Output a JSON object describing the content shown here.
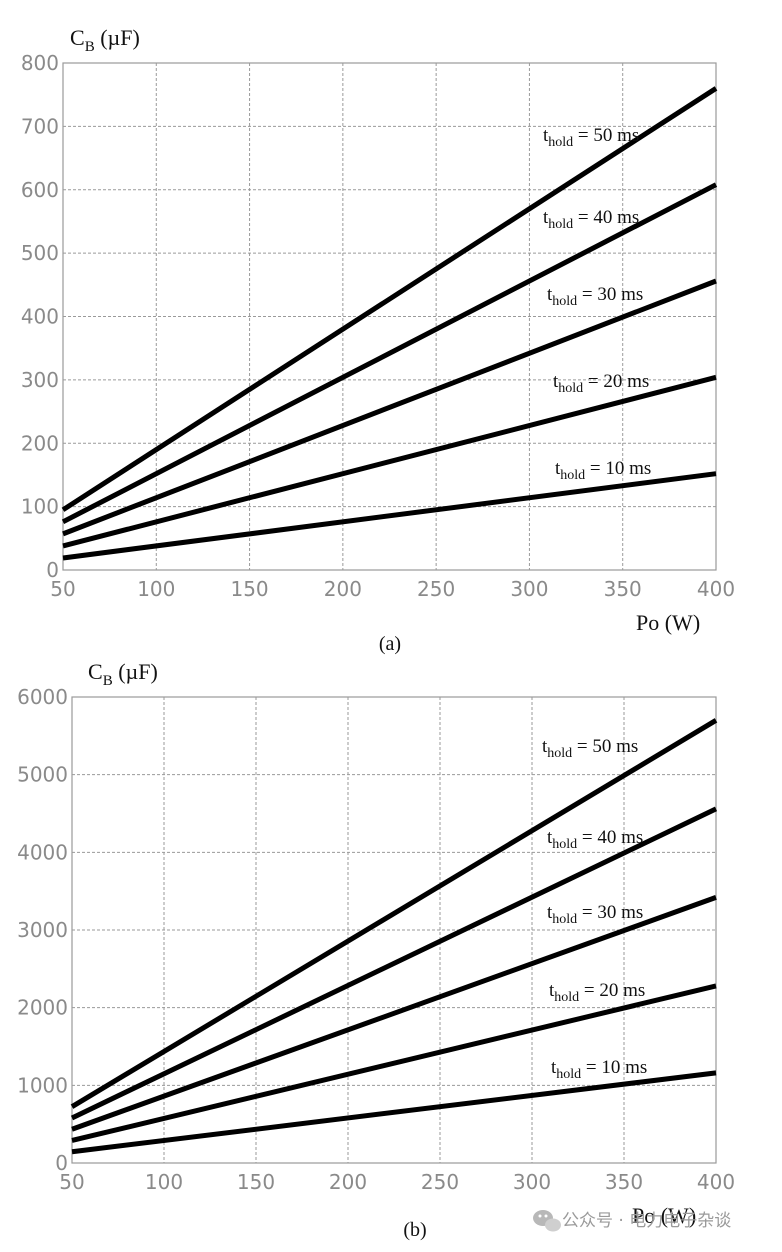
{
  "chart_data": [
    {
      "type": "line",
      "caption": "(a)",
      "ylabel": "C",
      "ylabel_sub": "B",
      "ylabel_unit": "(µF)",
      "xlabel": "Po (W)",
      "xlim": [
        50,
        400
      ],
      "ylim": [
        0,
        800
      ],
      "x_ticks": [
        50,
        100,
        150,
        200,
        250,
        300,
        350,
        400
      ],
      "y_ticks": [
        0,
        100,
        200,
        300,
        400,
        500,
        600,
        700,
        800
      ],
      "grid": true,
      "series": [
        {
          "name_main": "t",
          "name_sub": "hold",
          "name_tail": " = 50 ms",
          "x": [
            50,
            400
          ],
          "values": [
            95,
            760
          ]
        },
        {
          "name_main": "t",
          "name_sub": "hold",
          "name_tail": " = 40 ms",
          "x": [
            50,
            400
          ],
          "values": [
            76,
            608
          ]
        },
        {
          "name_main": "t",
          "name_sub": "hold",
          "name_tail": " = 30 ms",
          "x": [
            50,
            400
          ],
          "values": [
            57,
            456
          ]
        },
        {
          "name_main": "t",
          "name_sub": "hold",
          "name_tail": " = 20 ms",
          "x": [
            50,
            400
          ],
          "values": [
            38,
            304
          ]
        },
        {
          "name_main": "t",
          "name_sub": "hold",
          "name_tail": " = 10 ms",
          "x": [
            50,
            400
          ],
          "values": [
            19,
            152
          ]
        }
      ]
    },
    {
      "type": "line",
      "caption": "(b)",
      "ylabel": "C",
      "ylabel_sub": "B",
      "ylabel_unit": "(µF)",
      "xlabel": "Po (W)",
      "xlim": [
        50,
        400
      ],
      "ylim": [
        0,
        6000
      ],
      "x_ticks": [
        50,
        100,
        150,
        200,
        250,
        300,
        350,
        400
      ],
      "y_ticks": [
        0,
        1000,
        2000,
        3000,
        4000,
        5000,
        6000
      ],
      "grid": true,
      "series": [
        {
          "name_main": "t",
          "name_sub": "hold",
          "name_tail": " = 50 ms",
          "x": [
            50,
            400
          ],
          "values": [
            725,
            5700
          ]
        },
        {
          "name_main": "t",
          "name_sub": "hold",
          "name_tail": " = 40 ms",
          "x": [
            50,
            400
          ],
          "values": [
            580,
            4560
          ]
        },
        {
          "name_main": "t",
          "name_sub": "hold",
          "name_tail": " = 30 ms",
          "x": [
            50,
            400
          ],
          "values": [
            435,
            3420
          ]
        },
        {
          "name_main": "t",
          "name_sub": "hold",
          "name_tail": " = 20 ms",
          "x": [
            50,
            400
          ],
          "values": [
            290,
            2280
          ]
        },
        {
          "name_main": "t",
          "name_sub": "hold",
          "name_tail": " = 10 ms",
          "x": [
            50,
            400
          ],
          "values": [
            145,
            1160
          ]
        }
      ]
    }
  ],
  "watermark": "公众号 · 电力电子杂谈",
  "colors": {
    "line": "#000000",
    "grid": "#9a9a9a",
    "tick": "#8a8a8a"
  }
}
